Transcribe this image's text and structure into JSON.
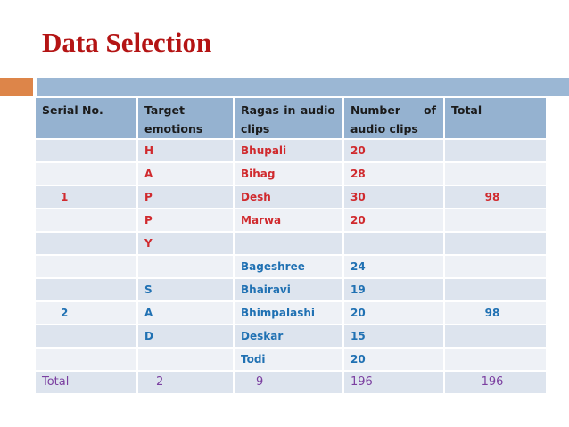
{
  "slide": {
    "title": "Data Selection",
    "colors": {
      "title_text": "#b41414",
      "accent_bar_orange": "#dd8549",
      "accent_bar_blue": "#9bb7d4",
      "header_bg": "#95b2d0",
      "band_dark": "#dde4ee",
      "band_light": "#eef1f6",
      "group1_text_red": "#d02a2e",
      "group2_text_blue": "#2071b3",
      "total_row_text_purple": "#7b3fa0"
    }
  },
  "table": {
    "header": {
      "serial": "Serial No.",
      "target_line1": "Target",
      "target_line2": "emotions",
      "ragas_line1": [
        "Ragas",
        "in",
        "audio"
      ],
      "ragas_line2": "clips",
      "number_line1": [
        "Number",
        "of"
      ],
      "number_line2": "audio clips",
      "total": "Total"
    },
    "rows": [
      {
        "serial": "",
        "emotion": "H",
        "raga": "Bhupali",
        "count": "20",
        "total": ""
      },
      {
        "serial": "",
        "emotion": "A",
        "raga": "Bihag",
        "count": "28",
        "total": ""
      },
      {
        "serial": "1",
        "emotion": "P",
        "raga": "Desh",
        "count": "30",
        "total": "98"
      },
      {
        "serial": "",
        "emotion": "P",
        "raga": "Marwa",
        "count": "20",
        "total": ""
      },
      {
        "serial": "",
        "emotion": "Y",
        "raga": "",
        "count": "",
        "total": ""
      },
      {
        "serial": "",
        "emotion": "",
        "raga": "Bageshree",
        "count": "24",
        "total": ""
      },
      {
        "serial": "",
        "emotion": "S",
        "raga": "Bhairavi",
        "count": "19",
        "total": ""
      },
      {
        "serial": "2",
        "emotion": "A",
        "raga": "Bhimpalashi",
        "count": "20",
        "total": "98"
      },
      {
        "serial": "",
        "emotion": "D",
        "raga": "Deskar",
        "count": "15",
        "total": ""
      },
      {
        "serial": "",
        "emotion": "",
        "raga": "Todi",
        "count": "20",
        "total": ""
      }
    ],
    "total_row": {
      "label": "Total",
      "emotions": "2",
      "ragas": "9",
      "count": "196",
      "total": "196"
    }
  }
}
